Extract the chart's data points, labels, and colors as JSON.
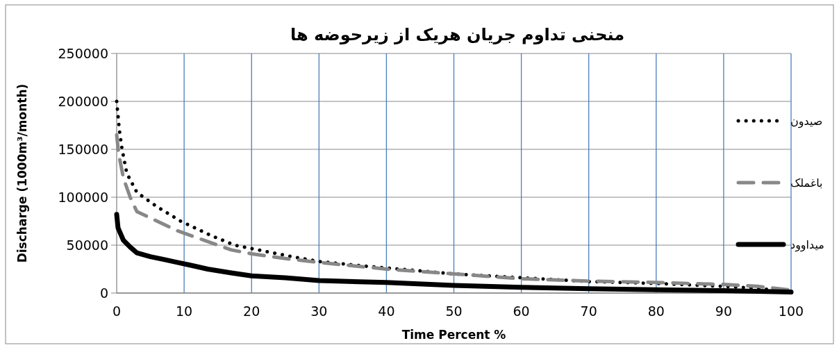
{
  "chart_data": {
    "type": "line",
    "title": "منحنی تداوم جریان هریک از زیرحوضه ها",
    "xlabel": "Time Percent %",
    "ylabel": "Discharge (1000m³/month)",
    "xlim": [
      0,
      100
    ],
    "xticks": [
      0,
      10,
      20,
      30,
      40,
      50,
      60,
      70,
      80,
      90,
      100
    ],
    "ylim": [
      0,
      250000
    ],
    "yticks": [
      0,
      50000,
      100000,
      150000,
      200000,
      250000
    ],
    "grid": true,
    "legend": "right",
    "marker": "none",
    "series": [
      {
        "name": "صیدون",
        "color": "#000000",
        "line_style": "dotted",
        "x": [
          0,
          0.4,
          0.8,
          1.5,
          3,
          6,
          9.5,
          14,
          17.5,
          21,
          26,
          30,
          37,
          42,
          50,
          60,
          70,
          80,
          90,
          95,
          100
        ],
        "values": [
          200000,
          170000,
          150000,
          125000,
          105000,
          90000,
          75000,
          60000,
          50000,
          45000,
          38000,
          33000,
          28000,
          25000,
          20000,
          16000,
          12000,
          10000,
          7000,
          5000,
          1000
        ]
      },
      {
        "name": "باغملک",
        "color": "#888888",
        "line_style": "dashed",
        "x": [
          0,
          0.3,
          1,
          2,
          3,
          6,
          9,
          13,
          17,
          20,
          25,
          30,
          40,
          50,
          60,
          70,
          80,
          90,
          95,
          100
        ],
        "values": [
          165000,
          145000,
          120000,
          100000,
          85000,
          75000,
          65000,
          55000,
          45000,
          41000,
          36000,
          32000,
          25000,
          20000,
          15000,
          12500,
          11000,
          9000,
          7000,
          3000
        ]
      },
      {
        "name": "میداوود",
        "color": "#000000",
        "line_style": "solid",
        "x": [
          0,
          0.2,
          1,
          2,
          3,
          5,
          7,
          9,
          11,
          13.5,
          17,
          20,
          25,
          30,
          40,
          50,
          60,
          70,
          80,
          90,
          100
        ],
        "values": [
          82000,
          68000,
          55000,
          48000,
          42000,
          38000,
          35000,
          32000,
          29000,
          25000,
          21000,
          18000,
          16000,
          13000,
          11000,
          8000,
          6000,
          4500,
          3500,
          2500,
          1000
        ]
      }
    ]
  }
}
